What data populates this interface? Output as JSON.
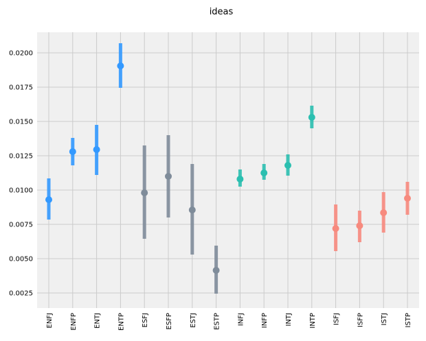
{
  "chart_data": {
    "type": "scatter",
    "title": "ideas",
    "xlabel": "",
    "ylabel": "",
    "ylim": [
      0.0014,
      0.0215
    ],
    "y_ticks": [
      "0.0025",
      "0.0050",
      "0.0075",
      "0.0100",
      "0.0125",
      "0.0150",
      "0.0175",
      "0.0200"
    ],
    "grid": true,
    "categories": [
      "ENFJ",
      "ENFP",
      "ENTJ",
      "ENTP",
      "ESFJ",
      "ESFP",
      "ESTJ",
      "ESTP",
      "INFJ",
      "INFP",
      "INTJ",
      "INTP",
      "ISFJ",
      "ISFP",
      "ISTJ",
      "ISTP"
    ],
    "values": [
      0.0093,
      0.0128,
      0.01295,
      0.01905,
      0.0098,
      0.011,
      0.00855,
      0.00415,
      0.0108,
      0.01125,
      0.0118,
      0.0153,
      0.0072,
      0.0074,
      0.00835,
      0.0094
    ],
    "ci_low": [
      0.00785,
      0.0118,
      0.0111,
      0.01745,
      0.00645,
      0.008,
      0.0053,
      0.00245,
      0.01025,
      0.01075,
      0.01105,
      0.0145,
      0.00555,
      0.0062,
      0.0069,
      0.0082
    ],
    "ci_high": [
      0.01085,
      0.0138,
      0.01475,
      0.0207,
      0.01325,
      0.014,
      0.0119,
      0.00595,
      0.0115,
      0.0119,
      0.0126,
      0.01615,
      0.00895,
      0.0085,
      0.00985,
      0.0106
    ],
    "colors": [
      "#3399ff",
      "#3399ff",
      "#3399ff",
      "#3399ff",
      "#7f8c9a",
      "#7f8c9a",
      "#7f8c9a",
      "#7f8c9a",
      "#2bbfb0",
      "#2bbfb0",
      "#2bbfb0",
      "#2bbfb0",
      "#f78a7e",
      "#f78a7e",
      "#f78a7e",
      "#f78a7e"
    ],
    "background": "#f0f0f0",
    "grid_color": "#cbcbcb"
  }
}
